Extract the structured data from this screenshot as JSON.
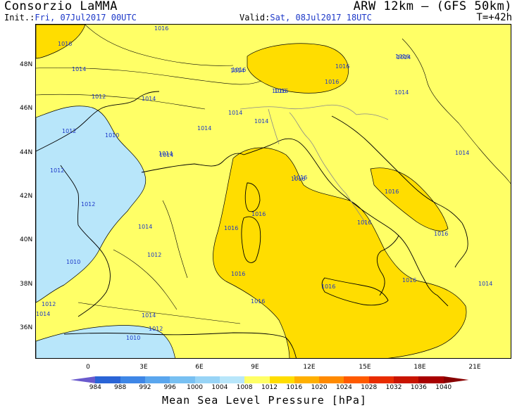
{
  "header": {
    "org": "Consorzio LaMMA",
    "model": "ARW 12km – (GFS 50km)",
    "init_label": "Init.:",
    "init_value": "Fri, 07Jul2017 00UTC",
    "valid_label": "Valid:",
    "valid_value": "Sat, 08Jul2017 18UTC",
    "lead_time": "T=+42h"
  },
  "axes": {
    "lat_labels": [
      "48N",
      "46N",
      "44N",
      "42N",
      "40N",
      "38N",
      "36N"
    ],
    "lon_labels": [
      "0",
      "3E",
      "6E",
      "9E",
      "12E",
      "15E",
      "18E",
      "21E"
    ]
  },
  "colorbar": {
    "title": "Mean Sea Level Pressure [hPa]",
    "ticks": [
      "984",
      "988",
      "992",
      "996",
      "1000",
      "1004",
      "1008",
      "1012",
      "1016",
      "1020",
      "1024",
      "1028",
      "1032",
      "1036",
      "1040"
    ],
    "colors": [
      "#6a5acd",
      "#2a64d6",
      "#3e86e6",
      "#5aa6ee",
      "#78c0f2",
      "#98d4f6",
      "#b8e6fa",
      "#ffff66",
      "#ffdd00",
      "#ffb000",
      "#ff8a00",
      "#ff5a00",
      "#e82c00",
      "#c81400",
      "#a80000",
      "#880000"
    ]
  },
  "isobar_labels": [
    "1016",
    "1016",
    "1014",
    "1014",
    "1012",
    "1012",
    "1010",
    "1014",
    "1012",
    "1014",
    "1016",
    "1016",
    "1016",
    "1014",
    "1016",
    "1014",
    "1016",
    "1014",
    "1012",
    "1016",
    "1016",
    "1016",
    "1016",
    "1014",
    "1016",
    "1014",
    "1014",
    "1016",
    "1014",
    "1012",
    "1012",
    "1014",
    "1010",
    "1012",
    "1014",
    "1010",
    "1016",
    "1016",
    "1016",
    "1014",
    "1014",
    "1016",
    "1016",
    "1016"
  ],
  "colors": {
    "sea_low": "#b8e6fa",
    "base": "#ffff66",
    "high": "#ffdd00",
    "text_blue": "#1c38c8"
  }
}
